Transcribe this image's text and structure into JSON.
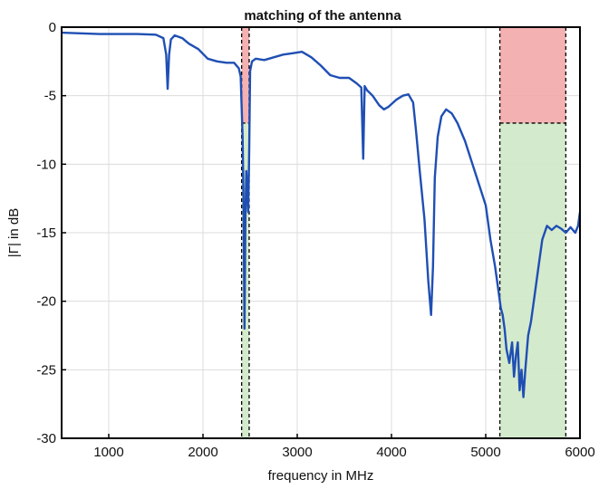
{
  "chart_data": {
    "type": "line",
    "title": "matching of the antenna",
    "xlabel": "frequency in MHz",
    "ylabel": "|Γ| in dB",
    "xlim": [
      500,
      6000
    ],
    "ylim": [
      -30,
      0
    ],
    "xticks": [
      1000,
      2000,
      3000,
      4000,
      5000,
      6000
    ],
    "yticks": [
      0,
      -5,
      -10,
      -15,
      -20,
      -25,
      -30
    ],
    "grid": true,
    "line_color": "#1f4fb4",
    "bands": [
      {
        "x": [
          2410,
          2490
        ],
        "y_red": [
          0,
          -7
        ],
        "y_green": [
          -7,
          -30
        ],
        "red_color": "#f2a9a9",
        "green_color": "#cfe8c6"
      },
      {
        "x": [
          5150,
          5850
        ],
        "y_red": [
          0,
          -7
        ],
        "y_green": [
          -7,
          -30
        ],
        "red_color": "#f2a9a9",
        "green_color": "#cfe8c6"
      }
    ],
    "series": [
      {
        "x": [
          500,
          700,
          900,
          1100,
          1300,
          1500,
          1580,
          1610,
          1625,
          1640,
          1660,
          1700,
          1780,
          1850,
          1950,
          2050,
          2150,
          2250,
          2330,
          2380,
          2400,
          2420,
          2430,
          2440,
          2450,
          2460,
          2470,
          2480,
          2490,
          2500,
          2520,
          2560,
          2650,
          2750,
          2850,
          2950,
          3050,
          3150,
          3250,
          3350,
          3450,
          3550,
          3630,
          3680,
          3700,
          3715,
          3740,
          3800,
          3870,
          3920,
          3970,
          4050,
          4120,
          4180,
          4230,
          4260,
          4300,
          4350,
          4390,
          4420,
          4440,
          4460,
          4490,
          4530,
          4580,
          4640,
          4700,
          4780,
          4850,
          4930,
          5000,
          5050,
          5100,
          5140,
          5160,
          5180,
          5200,
          5220,
          5250,
          5280,
          5300,
          5320,
          5340,
          5360,
          5380,
          5400,
          5420,
          5450,
          5480,
          5520,
          5560,
          5600,
          5650,
          5700,
          5750,
          5800,
          5850,
          5900,
          5950,
          5980,
          6000
        ],
        "values": [
          -0.4,
          -0.45,
          -0.5,
          -0.5,
          -0.5,
          -0.55,
          -0.8,
          -2.0,
          -4.5,
          -2.0,
          -0.9,
          -0.6,
          -0.8,
          -1.2,
          -1.6,
          -2.3,
          -2.5,
          -2.6,
          -2.6,
          -3.0,
          -3.6,
          -8.0,
          -12.5,
          -22.0,
          -14.0,
          -10.5,
          -12.0,
          -13.5,
          -9.0,
          -3.2,
          -2.5,
          -2.3,
          -2.4,
          -2.2,
          -2.0,
          -1.9,
          -1.8,
          -2.2,
          -2.8,
          -3.5,
          -3.7,
          -3.7,
          -4.1,
          -4.4,
          -9.6,
          -4.3,
          -4.6,
          -5.0,
          -5.7,
          -6.0,
          -5.8,
          -5.3,
          -5.0,
          -4.9,
          -5.5,
          -7.5,
          -10.5,
          -14.0,
          -18.5,
          -21.0,
          -17.5,
          -11.0,
          -8.0,
          -6.5,
          -6.0,
          -6.3,
          -7.0,
          -8.3,
          -9.8,
          -11.5,
          -13.0,
          -15.5,
          -17.5,
          -19.5,
          -20.5,
          -21.0,
          -22.0,
          -23.5,
          -24.5,
          -23.0,
          -25.5,
          -24.0,
          -23.0,
          -26.5,
          -25.0,
          -27.0,
          -25.0,
          -22.5,
          -21.5,
          -19.5,
          -17.5,
          -15.5,
          -14.5,
          -14.8,
          -14.5,
          -14.7,
          -15.0,
          -14.6,
          -15.0,
          -14.5,
          -13.5
        ]
      }
    ]
  }
}
